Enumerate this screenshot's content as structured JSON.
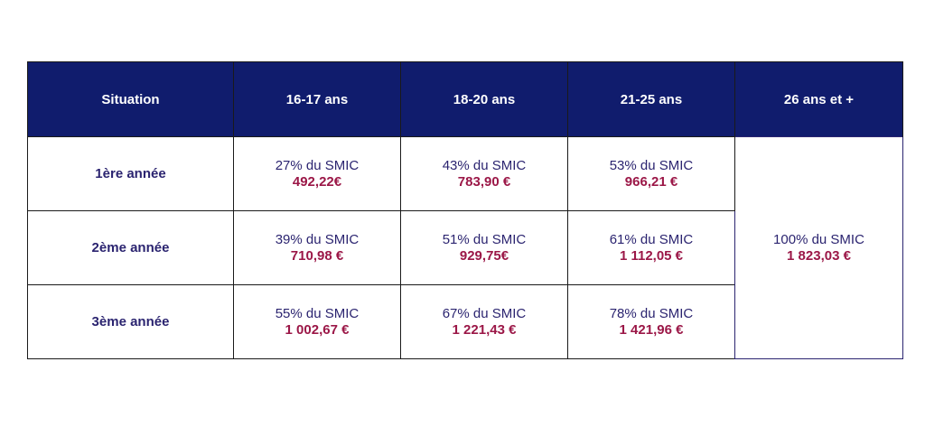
{
  "table": {
    "columns": [
      "Situation",
      "16-17 ans",
      "18-20 ans",
      "21-25 ans",
      "26 ans et +"
    ],
    "rows": [
      {
        "label": "1ère année",
        "cells": [
          {
            "rate": "27% du SMIC",
            "amount": "492,22€"
          },
          {
            "rate": "43% du SMIC",
            "amount": "783,90 €"
          },
          {
            "rate": "53% du SMIC",
            "amount": "966,21 €"
          }
        ]
      },
      {
        "label": "2ème année",
        "cells": [
          {
            "rate": "39% du SMIC",
            "amount": "710,98 €"
          },
          {
            "rate": "51% du SMIC",
            "amount": "929,75€"
          },
          {
            "rate": "61% du SMIC",
            "amount": "1 112,05 €"
          }
        ]
      },
      {
        "label": "3ème année",
        "cells": [
          {
            "rate": "55% du SMIC",
            "amount": "1 002,67 €"
          },
          {
            "rate": "67% du SMIC",
            "amount": "1 221,43 €"
          },
          {
            "rate": "78% du SMIC",
            "amount": "1 421,96 €"
          }
        ]
      }
    ],
    "merged": {
      "rate": "100% du SMIC",
      "amount": "1 823,03 €"
    }
  }
}
